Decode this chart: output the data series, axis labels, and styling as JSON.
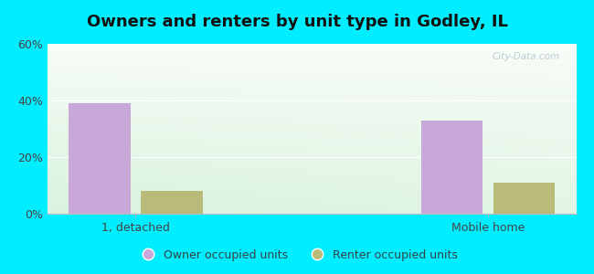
{
  "title": "Owners and renters by unit type in Godley, IL",
  "categories": [
    "1, detached",
    "Mobile home"
  ],
  "owner_values": [
    39,
    33
  ],
  "renter_values": [
    8,
    11
  ],
  "owner_color": "#c8a8d8",
  "renter_color": "#b8bc78",
  "ylim": [
    0,
    60
  ],
  "yticks": [
    0,
    20,
    40,
    60
  ],
  "ytick_labels": [
    "0%",
    "20%",
    "40%",
    "60%"
  ],
  "background_outer": "#00eeff",
  "legend_labels": [
    "Owner occupied units",
    "Renter occupied units"
  ],
  "watermark": "City-Data.com",
  "title_fontsize": 13,
  "axis_fontsize": 9,
  "x_positions": [
    0.5,
    2.5
  ],
  "bar_width": 0.35,
  "xlim": [
    0,
    3.0
  ]
}
